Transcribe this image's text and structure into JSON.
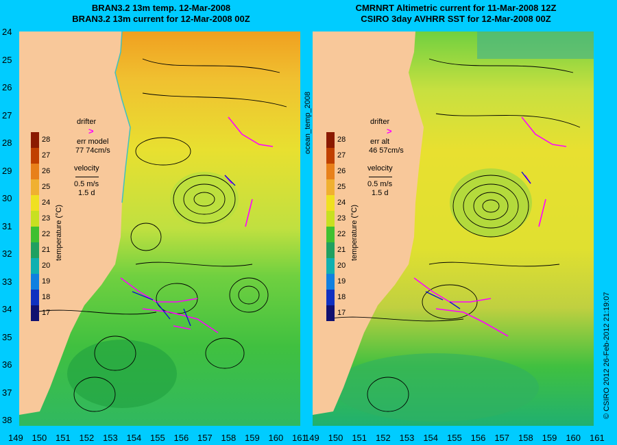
{
  "left_panel": {
    "title_line1": "BRAN3.2 13m temp. 12-Mar-2008",
    "title_line2": "BRAN3.2 13m current for 12-Mar-2008 00Z",
    "drifter_label": "drifter",
    "err_label": "err model",
    "err_value": "77 74cm/s",
    "velocity_label": "velocity",
    "velocity_scale": "0.5 m/s",
    "velocity_days": "1.5 d"
  },
  "right_panel": {
    "title_line1": "CMRNRT Altimetric current for 11-Mar-2008 12Z",
    "title_line2": "CSIRO 3day AVHRR SST for 12-Mar-2008 00Z",
    "drifter_label": "drifter",
    "err_label": "err alt",
    "err_value": "46 57cm/s",
    "velocity_label": "velocity",
    "velocity_scale": "0.5 m/s",
    "velocity_days": "1.5 d"
  },
  "drifter_symbol": ">",
  "colorbar": {
    "title": "temperature (°C)",
    "ticks": [
      "28",
      "27",
      "26",
      "25",
      "24",
      "23",
      "22",
      "21",
      "20",
      "19",
      "18",
      "17"
    ],
    "colors": [
      "#8b1a00",
      "#c04000",
      "#e8801a",
      "#f0b030",
      "#f0e020",
      "#c8e020",
      "#40c030",
      "#20a060",
      "#10b0b0",
      "#1080e0",
      "#1030c0",
      "#101070"
    ]
  },
  "latitudes": [
    "24",
    "25",
    "26",
    "27",
    "28",
    "29",
    "30",
    "31",
    "32",
    "33",
    "34",
    "35",
    "36",
    "37",
    "38"
  ],
  "longitudes": [
    "149",
    "150",
    "151",
    "152",
    "153",
    "154",
    "155",
    "156",
    "157",
    "158",
    "159",
    "160",
    "161"
  ],
  "side_label": "ocean_temp_2008",
  "credit": "© CSIRO 2012  26-Feb-2012 21:19:07"
}
